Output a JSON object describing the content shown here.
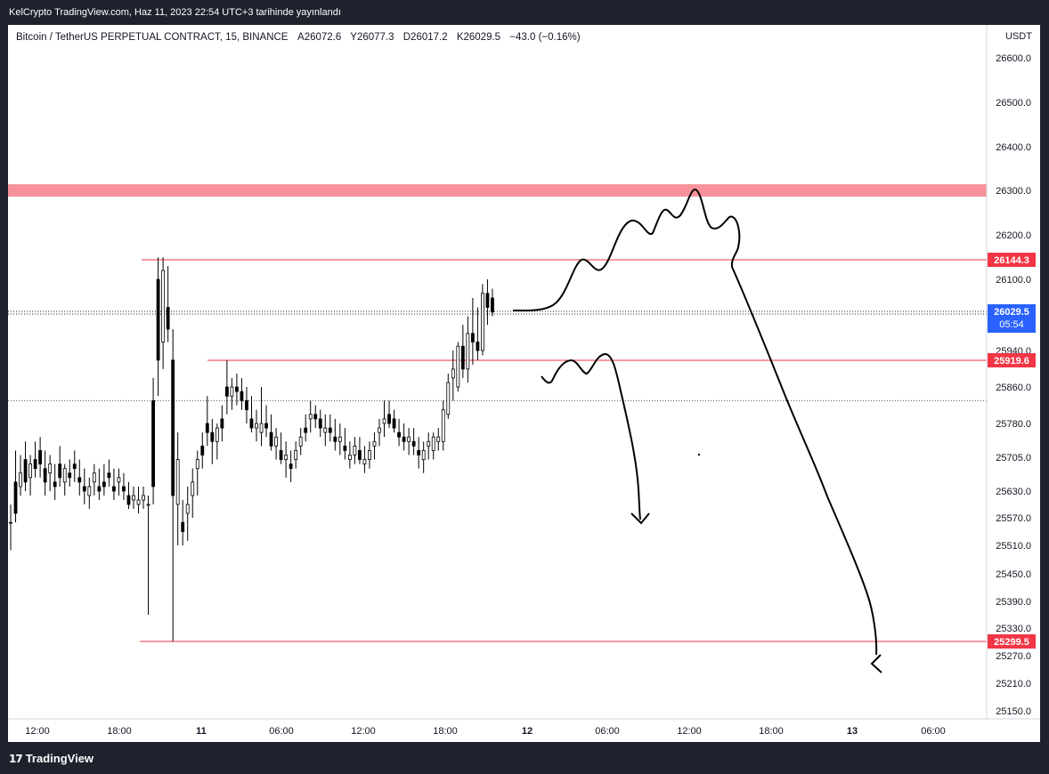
{
  "header": {
    "published_text": "KelCrypto TradingView.com, Haz 11, 2023 22:54 UTC+3 tarihinde yayınlandı"
  },
  "legend": {
    "symbol": "Bitcoin / TetherUS PERPETUAL CONTRACT, 15, BINANCE",
    "open": "A26072.6",
    "high": "Y26077.3",
    "low": "D26017.2",
    "close": "K26029.5",
    "change": "−43.0 (−0.16%)"
  },
  "footer": {
    "brand": "TradingView"
  },
  "colors": {
    "up": "#26a69a",
    "down": "#ef5350",
    "candle": "#000000",
    "zone": "#f7929a",
    "level_line": "#f23645",
    "last_price": "#2962ff"
  },
  "chart_data": {
    "type": "candlestick",
    "axis_currency": "USDT",
    "y_ticks": [
      "26600.0",
      "26500.0",
      "26400.0",
      "26300.0",
      "26200.0",
      "26100.0",
      "25940.0",
      "25860.0",
      "25780.0",
      "25705.0",
      "25630.0",
      "25570.0",
      "25510.0",
      "25450.0",
      "25390.0",
      "25330.0",
      "25270.0",
      "25210.0",
      "25150.0"
    ],
    "x_ticks": [
      "12:00",
      "18:00",
      "11",
      "06:00",
      "12:00",
      "18:00",
      "12",
      "06:00",
      "12:00",
      "18:00",
      "13",
      "06:00"
    ],
    "resistance_zone": [
      26290,
      26310
    ],
    "levels": [
      {
        "label": "26144.3",
        "value": 26144.3
      },
      {
        "label": "25919.6",
        "value": 25919.6
      },
      {
        "label": "25299.5",
        "value": 25299.5
      }
    ],
    "last_price": {
      "label": "26029.5",
      "countdown": "05:54",
      "value": 26029.5
    },
    "dotted_level": 25830,
    "candles": [
      [
        25560,
        25600,
        25500,
        25560
      ],
      [
        25650,
        25720,
        25560,
        25580
      ],
      [
        25640,
        25710,
        25620,
        25670
      ],
      [
        25700,
        25740,
        25630,
        25650
      ],
      [
        25660,
        25710,
        25620,
        25690
      ],
      [
        25700,
        25740,
        25660,
        25680
      ],
      [
        25720,
        25750,
        25660,
        25690
      ],
      [
        25680,
        25720,
        25620,
        25650
      ],
      [
        25670,
        25710,
        25630,
        25690
      ],
      [
        25650,
        25690,
        25610,
        25640
      ],
      [
        25690,
        25730,
        25640,
        25660
      ],
      [
        25650,
        25690,
        25620,
        25680
      ],
      [
        25670,
        25700,
        25640,
        25660
      ],
      [
        25690,
        25720,
        25650,
        25680
      ],
      [
        25660,
        25700,
        25620,
        25650
      ],
      [
        25640,
        25680,
        25600,
        25630
      ],
      [
        25620,
        25660,
        25590,
        25640
      ],
      [
        25650,
        25690,
        25620,
        25670
      ],
      [
        25640,
        25680,
        25610,
        25630
      ],
      [
        25650,
        25690,
        25620,
        25640
      ],
      [
        25670,
        25700,
        25640,
        25660
      ],
      [
        25640,
        25680,
        25610,
        25630
      ],
      [
        25650,
        25680,
        25620,
        25660
      ],
      [
        25640,
        25670,
        25610,
        25630
      ],
      [
        25620,
        25650,
        25590,
        25600
      ],
      [
        25610,
        25640,
        25590,
        25620
      ],
      [
        25600,
        25640,
        25580,
        25610
      ],
      [
        25610,
        25640,
        25590,
        25620
      ],
      [
        25600,
        25620,
        25360,
        25600
      ],
      [
        25830,
        25880,
        25600,
        25640
      ],
      [
        26100,
        26150,
        25840,
        25920
      ],
      [
        25960,
        26150,
        25900,
        26120
      ],
      [
        26040,
        26130,
        25960,
        25990
      ],
      [
        25920,
        25990,
        25300,
        25620
      ],
      [
        25600,
        25760,
        25510,
        25700
      ],
      [
        25560,
        25610,
        25510,
        25540
      ],
      [
        25580,
        25640,
        25520,
        25600
      ],
      [
        25620,
        25680,
        25570,
        25650
      ],
      [
        25680,
        25720,
        25620,
        25700
      ],
      [
        25730,
        25760,
        25680,
        25710
      ],
      [
        25780,
        25840,
        25730,
        25760
      ],
      [
        25760,
        25790,
        25690,
        25740
      ],
      [
        25740,
        25780,
        25700,
        25770
      ],
      [
        25790,
        25820,
        25740,
        25770
      ],
      [
        25860,
        25920,
        25800,
        25840
      ],
      [
        25840,
        25880,
        25810,
        25860
      ],
      [
        25860,
        25890,
        25820,
        25850
      ],
      [
        25850,
        25880,
        25810,
        25830
      ],
      [
        25830,
        25860,
        25780,
        25810
      ],
      [
        25790,
        25840,
        25760,
        25770
      ],
      [
        25770,
        25810,
        25740,
        25780
      ],
      [
        25760,
        25860,
        25730,
        25780
      ],
      [
        25780,
        25820,
        25750,
        25770
      ],
      [
        25760,
        25800,
        25720,
        25730
      ],
      [
        25730,
        25770,
        25700,
        25750
      ],
      [
        25720,
        25760,
        25690,
        25700
      ],
      [
        25700,
        25740,
        25660,
        25710
      ],
      [
        25690,
        25720,
        25650,
        25680
      ],
      [
        25700,
        25740,
        25680,
        25720
      ],
      [
        25730,
        25770,
        25710,
        25750
      ],
      [
        25770,
        25800,
        25740,
        25760
      ],
      [
        25790,
        25830,
        25760,
        25800
      ],
      [
        25800,
        25820,
        25770,
        25790
      ],
      [
        25790,
        25810,
        25750,
        25770
      ],
      [
        25760,
        25800,
        25730,
        25770
      ],
      [
        25770,
        25800,
        25740,
        25760
      ],
      [
        25750,
        25790,
        25720,
        25740
      ],
      [
        25740,
        25780,
        25710,
        25750
      ],
      [
        25730,
        25770,
        25700,
        25720
      ],
      [
        25700,
        25740,
        25680,
        25710
      ],
      [
        25710,
        25750,
        25690,
        25730
      ],
      [
        25720,
        25750,
        25690,
        25700
      ],
      [
        25690,
        25730,
        25670,
        25700
      ],
      [
        25700,
        25740,
        25680,
        25720
      ],
      [
        25730,
        25760,
        25700,
        25740
      ],
      [
        25760,
        25790,
        25730,
        25770
      ],
      [
        25780,
        25830,
        25750,
        25790
      ],
      [
        25800,
        25830,
        25770,
        25780
      ],
      [
        25790,
        25810,
        25760,
        25770
      ],
      [
        25760,
        25790,
        25730,
        25750
      ],
      [
        25750,
        25780,
        25720,
        25740
      ],
      [
        25740,
        25770,
        25710,
        25750
      ],
      [
        25740,
        25770,
        25710,
        25730
      ],
      [
        25720,
        25750,
        25680,
        25710
      ],
      [
        25700,
        25740,
        25670,
        25720
      ],
      [
        25730,
        25760,
        25700,
        25740
      ],
      [
        25720,
        25760,
        25700,
        25750
      ],
      [
        25740,
        25770,
        25720,
        25750
      ],
      [
        25740,
        25830,
        25720,
        25810
      ],
      [
        25800,
        25890,
        25790,
        25870
      ],
      [
        25880,
        25940,
        25830,
        25900
      ],
      [
        25860,
        25960,
        25850,
        25950
      ],
      [
        25950,
        26000,
        25880,
        25900
      ],
      [
        25900,
        26020,
        25870,
        25980
      ],
      [
        25980,
        26060,
        25910,
        25960
      ],
      [
        25960,
        26040,
        25920,
        25940
      ],
      [
        25940,
        26090,
        25930,
        26070
      ],
      [
        26070,
        26100,
        26000,
        26040
      ],
      [
        26060,
        26080,
        26020,
        26030
      ]
    ]
  }
}
